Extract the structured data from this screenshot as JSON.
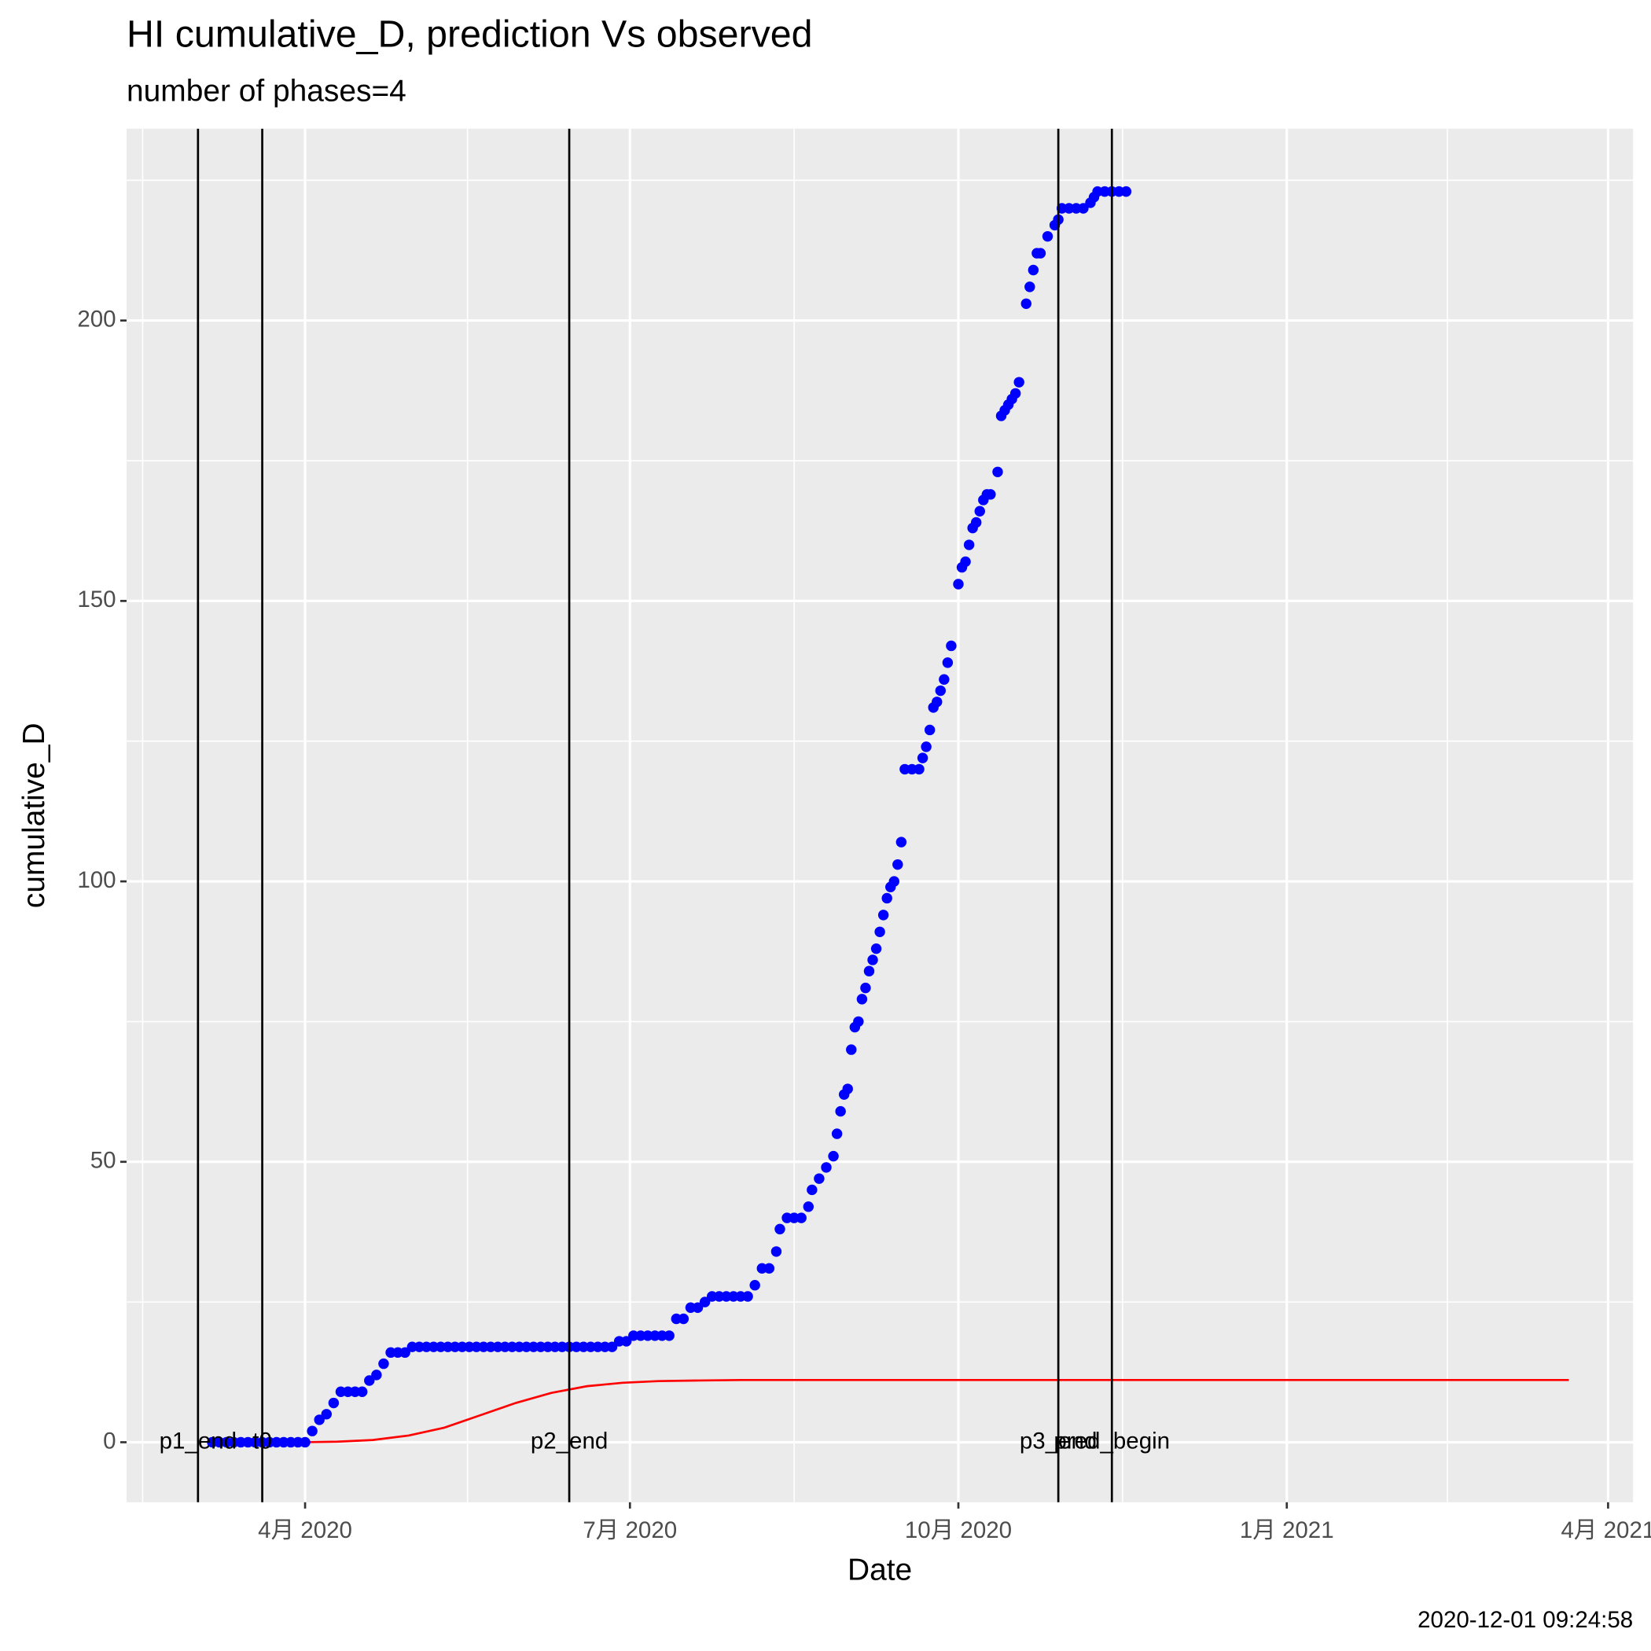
{
  "chart_data": {
    "type": "scatter",
    "title": "HI cumulative_D,  prediction Vs observed",
    "subtitle": "number of phases=4",
    "x_label": "Date",
    "y_label": "cumulative_D",
    "caption": "2020-12-01 09:24:58",
    "xlim": [
      "2020-02-11",
      "2021-04-08"
    ],
    "xticks": [
      {
        "value": "2020-04-01",
        "label": "4月 2020"
      },
      {
        "value": "2020-07-01",
        "label": "7月 2020"
      },
      {
        "value": "2020-10-01",
        "label": "10月 2020"
      },
      {
        "value": "2021-01-01",
        "label": "1月 2021"
      },
      {
        "value": "2021-04-01",
        "label": "4月 2021"
      }
    ],
    "ylim": [
      -10.7,
      234.2
    ],
    "yticks": [
      0,
      50,
      100,
      150,
      200
    ],
    "grid": true,
    "vlines": [
      {
        "x": "2020-03-02",
        "label": "p1_end"
      },
      {
        "x": "2020-03-20",
        "label": "t0"
      },
      {
        "x": "2020-06-14",
        "label": "p2_end"
      },
      {
        "x": "2020-10-29",
        "label": "p3_end"
      },
      {
        "x": "2020-11-13",
        "label": "pred_begin"
      }
    ],
    "series": [
      {
        "type": "scatter",
        "color": "#0000ff",
        "x": [
          "2020-03-06",
          "2020-03-08",
          "2020-03-10",
          "2020-03-12",
          "2020-03-14",
          "2020-03-16",
          "2020-03-18",
          "2020-03-20",
          "2020-03-22",
          "2020-03-24",
          "2020-03-26",
          "2020-03-28",
          "2020-03-30",
          "2020-04-01",
          "2020-04-03",
          "2020-04-05",
          "2020-04-07",
          "2020-04-09",
          "2020-04-11",
          "2020-04-13",
          "2020-04-15",
          "2020-04-17",
          "2020-04-19",
          "2020-04-21",
          "2020-04-23",
          "2020-04-25",
          "2020-04-27",
          "2020-04-29",
          "2020-05-01",
          "2020-05-03",
          "2020-05-05",
          "2020-05-07",
          "2020-05-09",
          "2020-05-11",
          "2020-05-13",
          "2020-05-15",
          "2020-05-17",
          "2020-05-19",
          "2020-05-21",
          "2020-05-23",
          "2020-05-25",
          "2020-05-27",
          "2020-05-29",
          "2020-05-31",
          "2020-06-02",
          "2020-06-04",
          "2020-06-06",
          "2020-06-08",
          "2020-06-10",
          "2020-06-12",
          "2020-06-14",
          "2020-06-16",
          "2020-06-18",
          "2020-06-20",
          "2020-06-22",
          "2020-06-24",
          "2020-06-26",
          "2020-06-28",
          "2020-06-30",
          "2020-07-02",
          "2020-07-04",
          "2020-07-06",
          "2020-07-08",
          "2020-07-10",
          "2020-07-12",
          "2020-07-14",
          "2020-07-16",
          "2020-07-18",
          "2020-07-20",
          "2020-07-22",
          "2020-07-24",
          "2020-07-26",
          "2020-07-28",
          "2020-07-30",
          "2020-08-01",
          "2020-08-03",
          "2020-08-05",
          "2020-08-07",
          "2020-08-09",
          "2020-08-11",
          "2020-08-12",
          "2020-08-14",
          "2020-08-16",
          "2020-08-18",
          "2020-08-20",
          "2020-08-21",
          "2020-08-23",
          "2020-08-25",
          "2020-08-27",
          "2020-08-28",
          "2020-08-29",
          "2020-08-30",
          "2020-08-31",
          "2020-09-01",
          "2020-09-02",
          "2020-09-03",
          "2020-09-04",
          "2020-09-05",
          "2020-09-06",
          "2020-09-07",
          "2020-09-08",
          "2020-09-09",
          "2020-09-10",
          "2020-09-11",
          "2020-09-12",
          "2020-09-13",
          "2020-09-14",
          "2020-09-15",
          "2020-09-16",
          "2020-09-18",
          "2020-09-20",
          "2020-09-21",
          "2020-09-22",
          "2020-09-23",
          "2020-09-24",
          "2020-09-25",
          "2020-09-26",
          "2020-09-27",
          "2020-09-28",
          "2020-09-29",
          "2020-10-01",
          "2020-10-02",
          "2020-10-03",
          "2020-10-04",
          "2020-10-05",
          "2020-10-06",
          "2020-10-07",
          "2020-10-08",
          "2020-10-09",
          "2020-10-10",
          "2020-10-12",
          "2020-10-13",
          "2020-10-14",
          "2020-10-15",
          "2020-10-16",
          "2020-10-17",
          "2020-10-18",
          "2020-10-20",
          "2020-10-21",
          "2020-10-22",
          "2020-10-23",
          "2020-10-24",
          "2020-10-26",
          "2020-10-28",
          "2020-10-29",
          "2020-10-30",
          "2020-11-01",
          "2020-11-03",
          "2020-11-05",
          "2020-11-07",
          "2020-11-08",
          "2020-11-09",
          "2020-11-11",
          "2020-11-13",
          "2020-11-15",
          "2020-11-17"
        ],
        "values": [
          0,
          0,
          0,
          0,
          0,
          0,
          0,
          0,
          0,
          0,
          0,
          0,
          0,
          0,
          2,
          4,
          5,
          7,
          9,
          9,
          9,
          9,
          11,
          12,
          14,
          16,
          16,
          16,
          17,
          17,
          17,
          17,
          17,
          17,
          17,
          17,
          17,
          17,
          17,
          17,
          17,
          17,
          17,
          17,
          17,
          17,
          17,
          17,
          17,
          17,
          17,
          17,
          17,
          17,
          17,
          17,
          17,
          18,
          18,
          19,
          19,
          19,
          19,
          19,
          19,
          22,
          22,
          24,
          24,
          25,
          26,
          26,
          26,
          26,
          26,
          26,
          28,
          31,
          31,
          34,
          38,
          40,
          40,
          40,
          42,
          45,
          47,
          49,
          51,
          55,
          59,
          62,
          63,
          70,
          74,
          75,
          79,
          81,
          84,
          86,
          88,
          91,
          94,
          97,
          99,
          100,
          103,
          107,
          120,
          120,
          120,
          122,
          124,
          127,
          131,
          132,
          134,
          136,
          139,
          142,
          153,
          156,
          157,
          160,
          163,
          164,
          166,
          168,
          169,
          169,
          173,
          183,
          184,
          185,
          186,
          187,
          189,
          203,
          206,
          209,
          212,
          212,
          215,
          217,
          218,
          220,
          220,
          220,
          220,
          221,
          222,
          223,
          223,
          223,
          223,
          223
        ]
      },
      {
        "type": "line",
        "color": "#ff0000",
        "x": [
          "2020-04-01",
          "2020-04-10",
          "2020-04-20",
          "2020-04-30",
          "2020-05-10",
          "2020-05-20",
          "2020-05-30",
          "2020-06-09",
          "2020-06-19",
          "2020-06-29",
          "2020-07-09",
          "2020-07-19",
          "2020-08-01",
          "2021-03-21"
        ],
        "values": [
          0,
          0.1,
          0.4,
          1.2,
          2.6,
          4.8,
          7.0,
          8.8,
          10.0,
          10.6,
          10.9,
          11.0,
          11.1,
          11.1
        ]
      }
    ]
  }
}
